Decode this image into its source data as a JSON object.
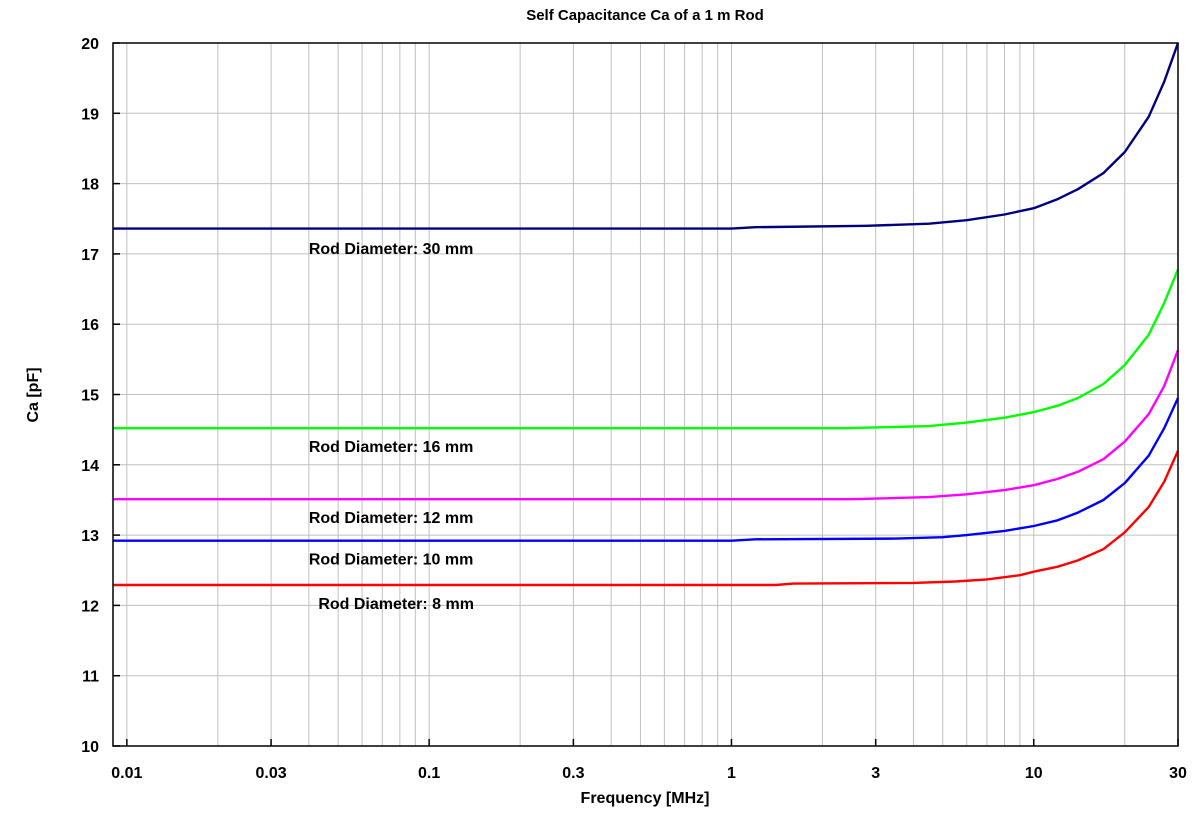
{
  "chart_data": {
    "type": "line",
    "title": "Self Capacitance Ca of a 1 m Rod",
    "xlabel": "Frequency [MHz]",
    "ylabel": "Ca [pF]",
    "xscale": "log",
    "xlim": [
      0.009,
      30
    ],
    "ylim": [
      10,
      20
    ],
    "grid": true,
    "legend": "none",
    "xticks": [
      {
        "value": 0.01,
        "label": "0.01"
      },
      {
        "value": 0.03,
        "label": "0.03"
      },
      {
        "value": 0.1,
        "label": "0.1"
      },
      {
        "value": 0.3,
        "label": "0.3"
      },
      {
        "value": 1,
        "label": "1"
      },
      {
        "value": 3,
        "label": "3"
      },
      {
        "value": 10,
        "label": "10"
      },
      {
        "value": 30,
        "label": "30"
      }
    ],
    "yticks": [
      {
        "value": 10,
        "label": "10"
      },
      {
        "value": 11,
        "label": "11"
      },
      {
        "value": 12,
        "label": "12"
      },
      {
        "value": 13,
        "label": "13"
      },
      {
        "value": 14,
        "label": "14"
      },
      {
        "value": 15,
        "label": "15"
      },
      {
        "value": 16,
        "label": "16"
      },
      {
        "value": 17,
        "label": "17"
      },
      {
        "value": 18,
        "label": "18"
      },
      {
        "value": 19,
        "label": "19"
      },
      {
        "value": 20,
        "label": "20"
      }
    ],
    "series": [
      {
        "key": "d30",
        "color": "#00007f",
        "x": [
          0.009,
          1.0,
          1.2,
          2.8,
          4.5,
          6,
          8,
          10,
          12,
          14,
          17,
          20,
          24,
          27,
          30
        ],
        "y": [
          17.36,
          17.36,
          17.38,
          17.4,
          17.43,
          17.48,
          17.56,
          17.65,
          17.78,
          17.92,
          18.15,
          18.45,
          18.95,
          19.45,
          20.0
        ]
      },
      {
        "key": "d16",
        "color": "#00ff00",
        "x": [
          0.009,
          2.4,
          4.5,
          6,
          8,
          10,
          12,
          14,
          17,
          20,
          24,
          27,
          30
        ],
        "y": [
          14.52,
          14.52,
          14.55,
          14.6,
          14.67,
          14.75,
          14.84,
          14.95,
          15.15,
          15.42,
          15.85,
          16.3,
          16.78
        ]
      },
      {
        "key": "d12",
        "color": "#ff00ff",
        "x": [
          0.009,
          2.5,
          4.5,
          6,
          8,
          10,
          12,
          14,
          17,
          20,
          24,
          27,
          30
        ],
        "y": [
          13.51,
          13.51,
          13.54,
          13.58,
          13.64,
          13.71,
          13.8,
          13.9,
          14.08,
          14.33,
          14.72,
          15.12,
          15.63
        ]
      },
      {
        "key": "d10",
        "color": "#0000ff",
        "x": [
          0.009,
          1.0,
          1.2,
          3.5,
          5,
          6,
          8,
          10,
          12,
          14,
          17,
          20,
          24,
          27,
          30
        ],
        "y": [
          12.92,
          12.92,
          12.94,
          12.95,
          12.97,
          13.0,
          13.06,
          13.13,
          13.21,
          13.32,
          13.5,
          13.74,
          14.13,
          14.52,
          14.95
        ]
      },
      {
        "key": "d8",
        "color": "#ff0000",
        "x": [
          0.009,
          1.4,
          1.6,
          4.0,
          5.5,
          7,
          9,
          10,
          12,
          14,
          17,
          20,
          24,
          27,
          30
        ],
        "y": [
          12.29,
          12.29,
          12.31,
          12.32,
          12.34,
          12.37,
          12.43,
          12.48,
          12.55,
          12.64,
          12.8,
          13.04,
          13.4,
          13.76,
          14.2
        ]
      }
    ],
    "annotations": [
      {
        "text": "Rod Diameter: 30 mm",
        "x": 0.04,
        "y": 17.0
      },
      {
        "text": "Rod Diameter: 16 mm",
        "x": 0.04,
        "y": 14.18
      },
      {
        "text": "Rod Diameter: 12 mm",
        "x": 0.04,
        "y": 13.17
      },
      {
        "text": "Rod Diameter: 10 mm",
        "x": 0.04,
        "y": 12.58
      },
      {
        "text": "Rod Diameter: 8 mm",
        "x": 0.043,
        "y": 11.95
      }
    ]
  }
}
